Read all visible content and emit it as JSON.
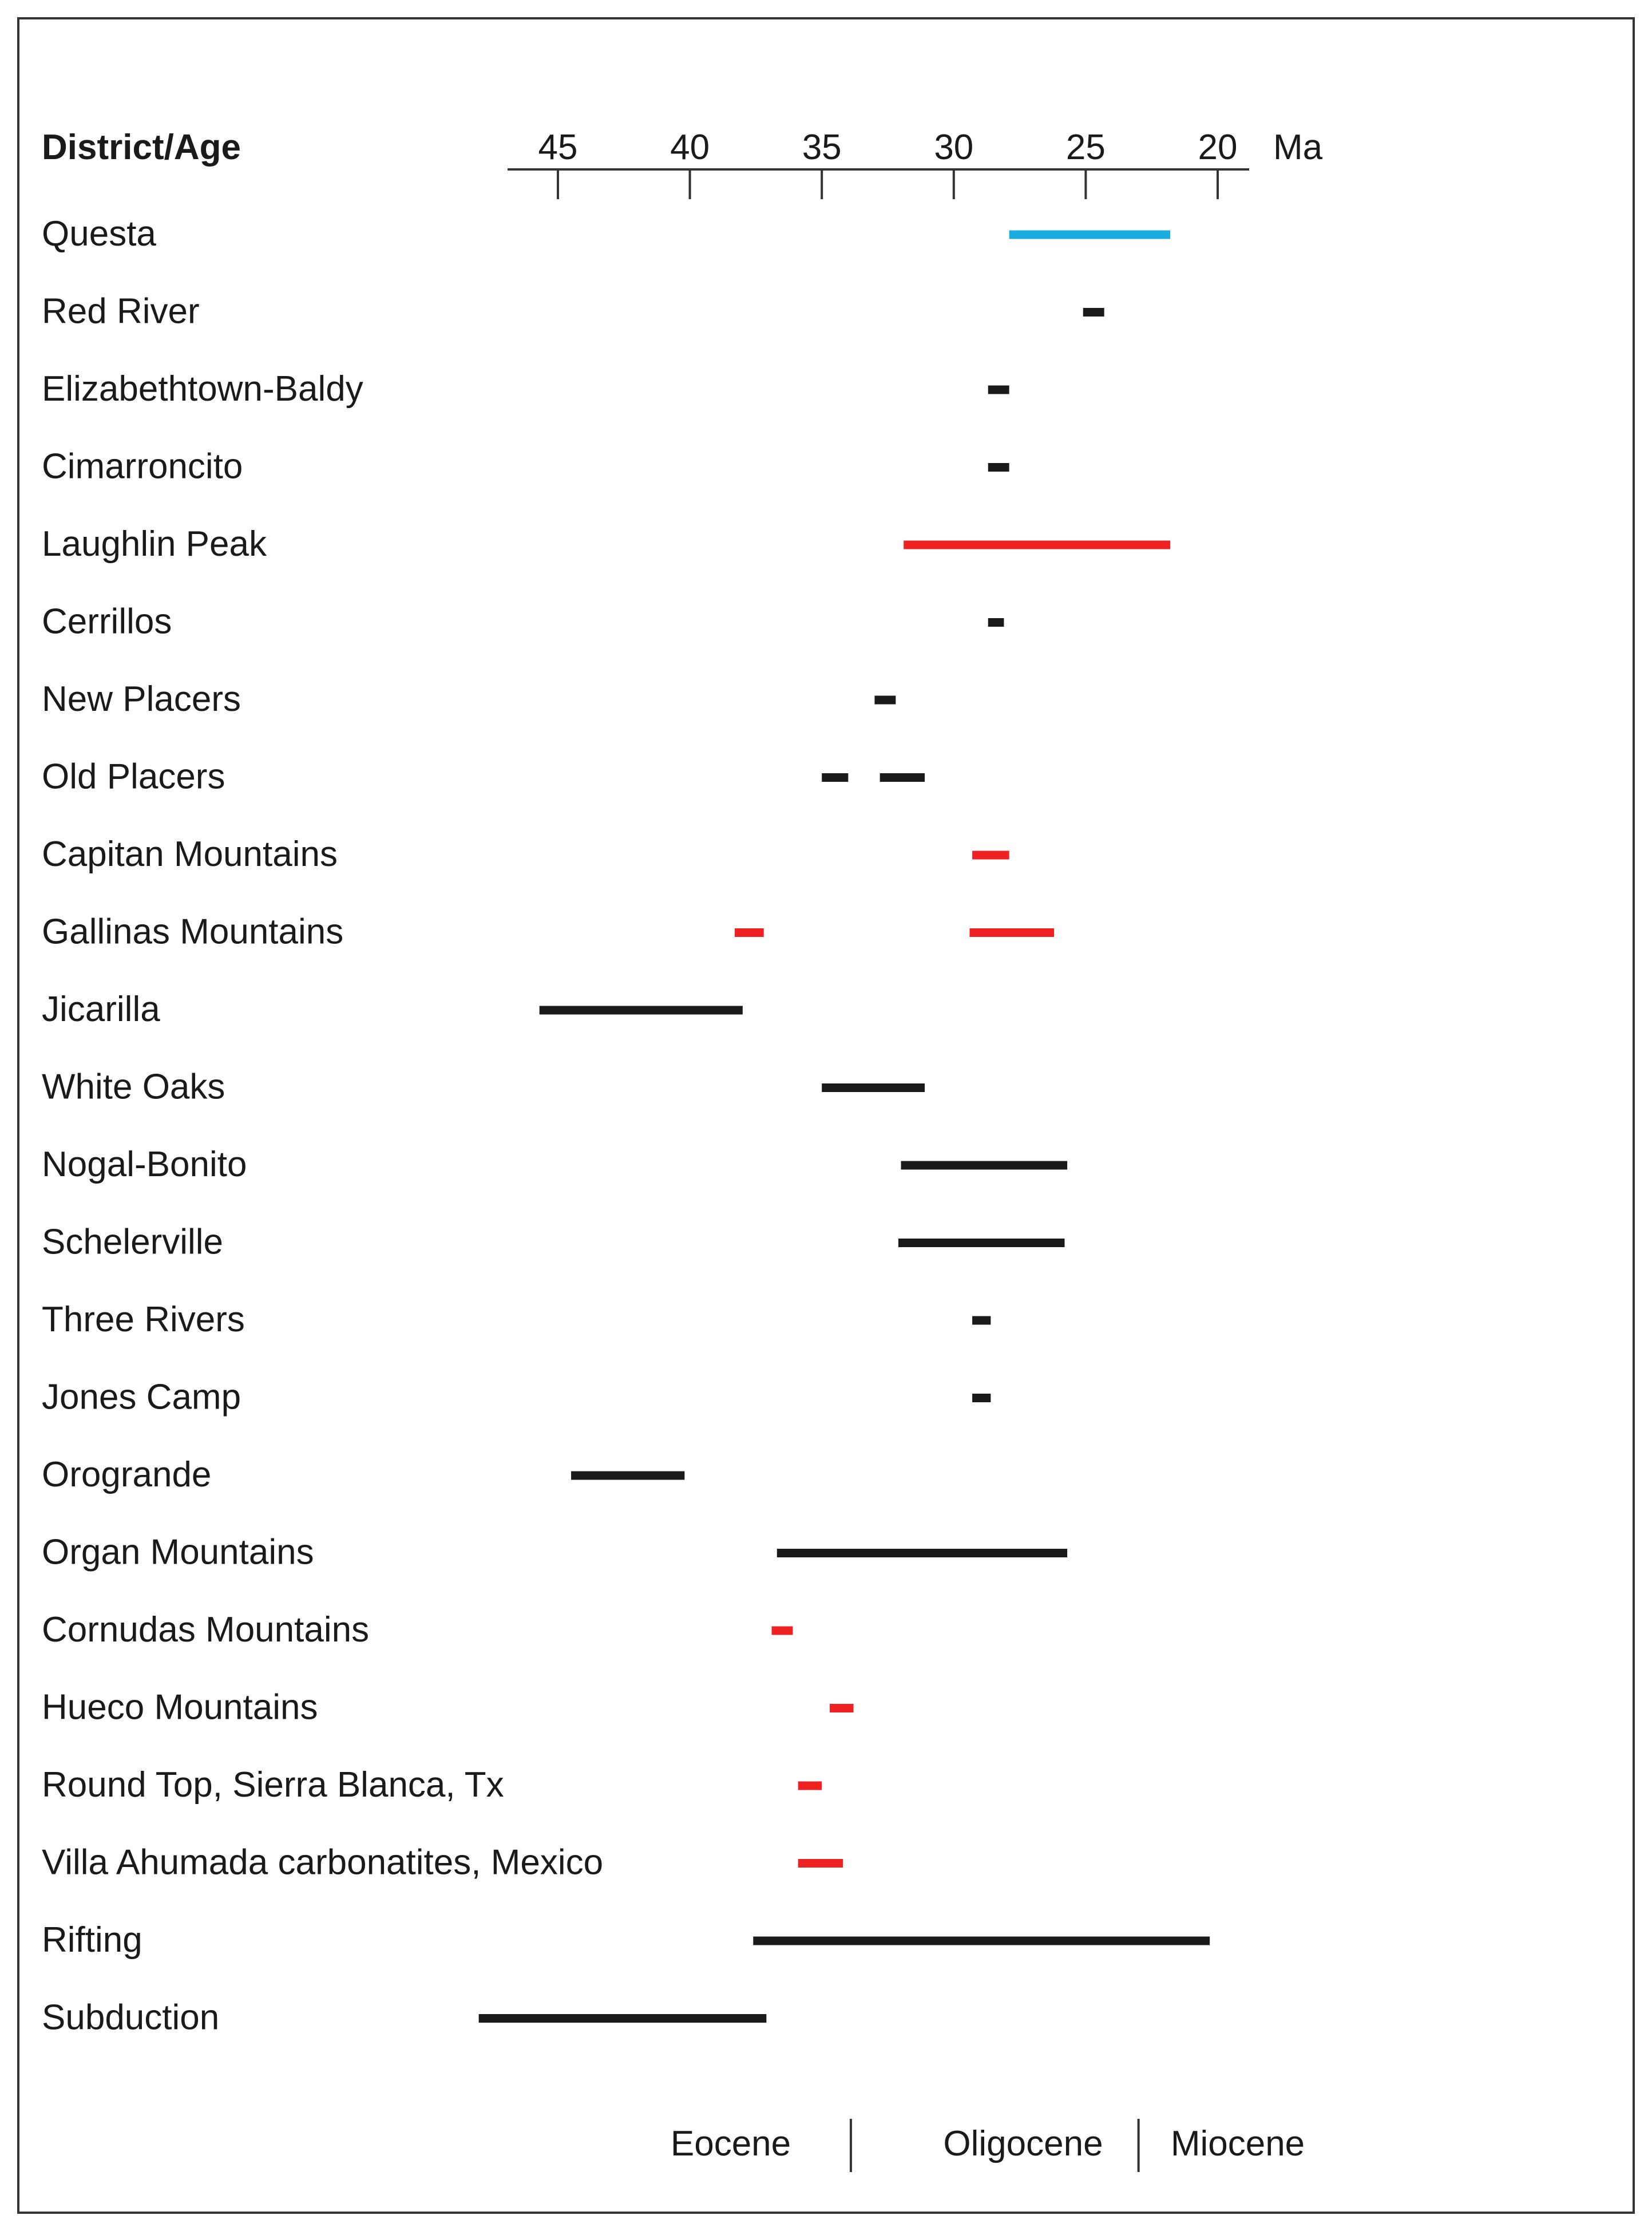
{
  "chart_data": {
    "type": "range-timeline",
    "header": "District/Age",
    "unit": "Ma",
    "axis": {
      "ticks": [
        45,
        40,
        35,
        30,
        25,
        20
      ],
      "reversed": true
    },
    "colors": {
      "blue": "#1aaee0",
      "red": "#ee2222",
      "black": "#1a1a1a"
    },
    "rows": [
      {
        "label": "Questa",
        "ranges": [
          {
            "from": 27.9,
            "to": 21.8,
            "color": "blue"
          }
        ]
      },
      {
        "label": "Red River",
        "ranges": [
          {
            "from": 25.1,
            "to": 24.3,
            "color": "black"
          }
        ]
      },
      {
        "label": "Elizabethtown-Baldy",
        "ranges": [
          {
            "from": 28.7,
            "to": 27.9,
            "color": "black"
          }
        ]
      },
      {
        "label": "Cimarroncito",
        "ranges": [
          {
            "from": 28.7,
            "to": 27.9,
            "color": "black"
          }
        ]
      },
      {
        "label": "Laughlin Peak",
        "ranges": [
          {
            "from": 31.9,
            "to": 21.8,
            "color": "red"
          }
        ]
      },
      {
        "label": "Cerrillos",
        "ranges": [
          {
            "from": 28.7,
            "to": 28.1,
            "color": "black"
          }
        ]
      },
      {
        "label": "New Placers",
        "ranges": [
          {
            "from": 33.0,
            "to": 32.2,
            "color": "black"
          }
        ]
      },
      {
        "label": "Old Placers",
        "ranges": [
          {
            "from": 35.0,
            "to": 34.0,
            "color": "black"
          },
          {
            "from": 32.8,
            "to": 31.1,
            "color": "black"
          }
        ]
      },
      {
        "label": "Capitan Mountains",
        "ranges": [
          {
            "from": 29.3,
            "to": 27.9,
            "color": "red"
          }
        ]
      },
      {
        "label": "Gallinas Mountains",
        "ranges": [
          {
            "from": 38.3,
            "to": 37.2,
            "color": "red"
          },
          {
            "from": 29.4,
            "to": 26.2,
            "color": "red"
          }
        ]
      },
      {
        "label": "Jicarilla",
        "ranges": [
          {
            "from": 45.7,
            "to": 38.0,
            "color": "black"
          }
        ]
      },
      {
        "label": "White Oaks",
        "ranges": [
          {
            "from": 35.0,
            "to": 31.1,
            "color": "black"
          }
        ]
      },
      {
        "label": "Nogal-Bonito",
        "ranges": [
          {
            "from": 32.0,
            "to": 25.7,
            "color": "black"
          }
        ]
      },
      {
        "label": "Schelerville",
        "ranges": [
          {
            "from": 32.1,
            "to": 25.8,
            "color": "black"
          }
        ]
      },
      {
        "label": "Three Rivers",
        "ranges": [
          {
            "from": 29.3,
            "to": 28.6,
            "color": "black"
          }
        ]
      },
      {
        "label": "Jones Camp",
        "ranges": [
          {
            "from": 29.3,
            "to": 28.6,
            "color": "black"
          }
        ]
      },
      {
        "label": "Orogrande",
        "ranges": [
          {
            "from": 44.5,
            "to": 40.2,
            "color": "black"
          }
        ]
      },
      {
        "label": "Organ Mountains",
        "ranges": [
          {
            "from": 36.7,
            "to": 25.7,
            "color": "black"
          }
        ]
      },
      {
        "label": "Cornudas Mountains",
        "ranges": [
          {
            "from": 36.9,
            "to": 36.1,
            "color": "red"
          }
        ]
      },
      {
        "label": "Hueco Mountains",
        "ranges": [
          {
            "from": 34.7,
            "to": 33.8,
            "color": "red"
          }
        ]
      },
      {
        "label": "Round Top, Sierra Blanca, Tx",
        "ranges": [
          {
            "from": 35.9,
            "to": 35.0,
            "color": "red"
          }
        ]
      },
      {
        "label": "Villa Ahumada carbonatites, Mexico",
        "ranges": [
          {
            "from": 35.9,
            "to": 34.2,
            "color": "red"
          }
        ]
      },
      {
        "label": "Rifting",
        "ranges": [
          {
            "from": 37.6,
            "to": 20.3,
            "color": "black"
          }
        ]
      },
      {
        "label": "Subduction",
        "ranges": [
          {
            "from": 48.0,
            "to": 37.1,
            "color": "black"
          }
        ]
      }
    ],
    "epochs": {
      "labels": [
        "Eocene",
        "Oligocene",
        "Miocene"
      ],
      "boundaries": [
        33.9,
        23.0
      ]
    }
  }
}
